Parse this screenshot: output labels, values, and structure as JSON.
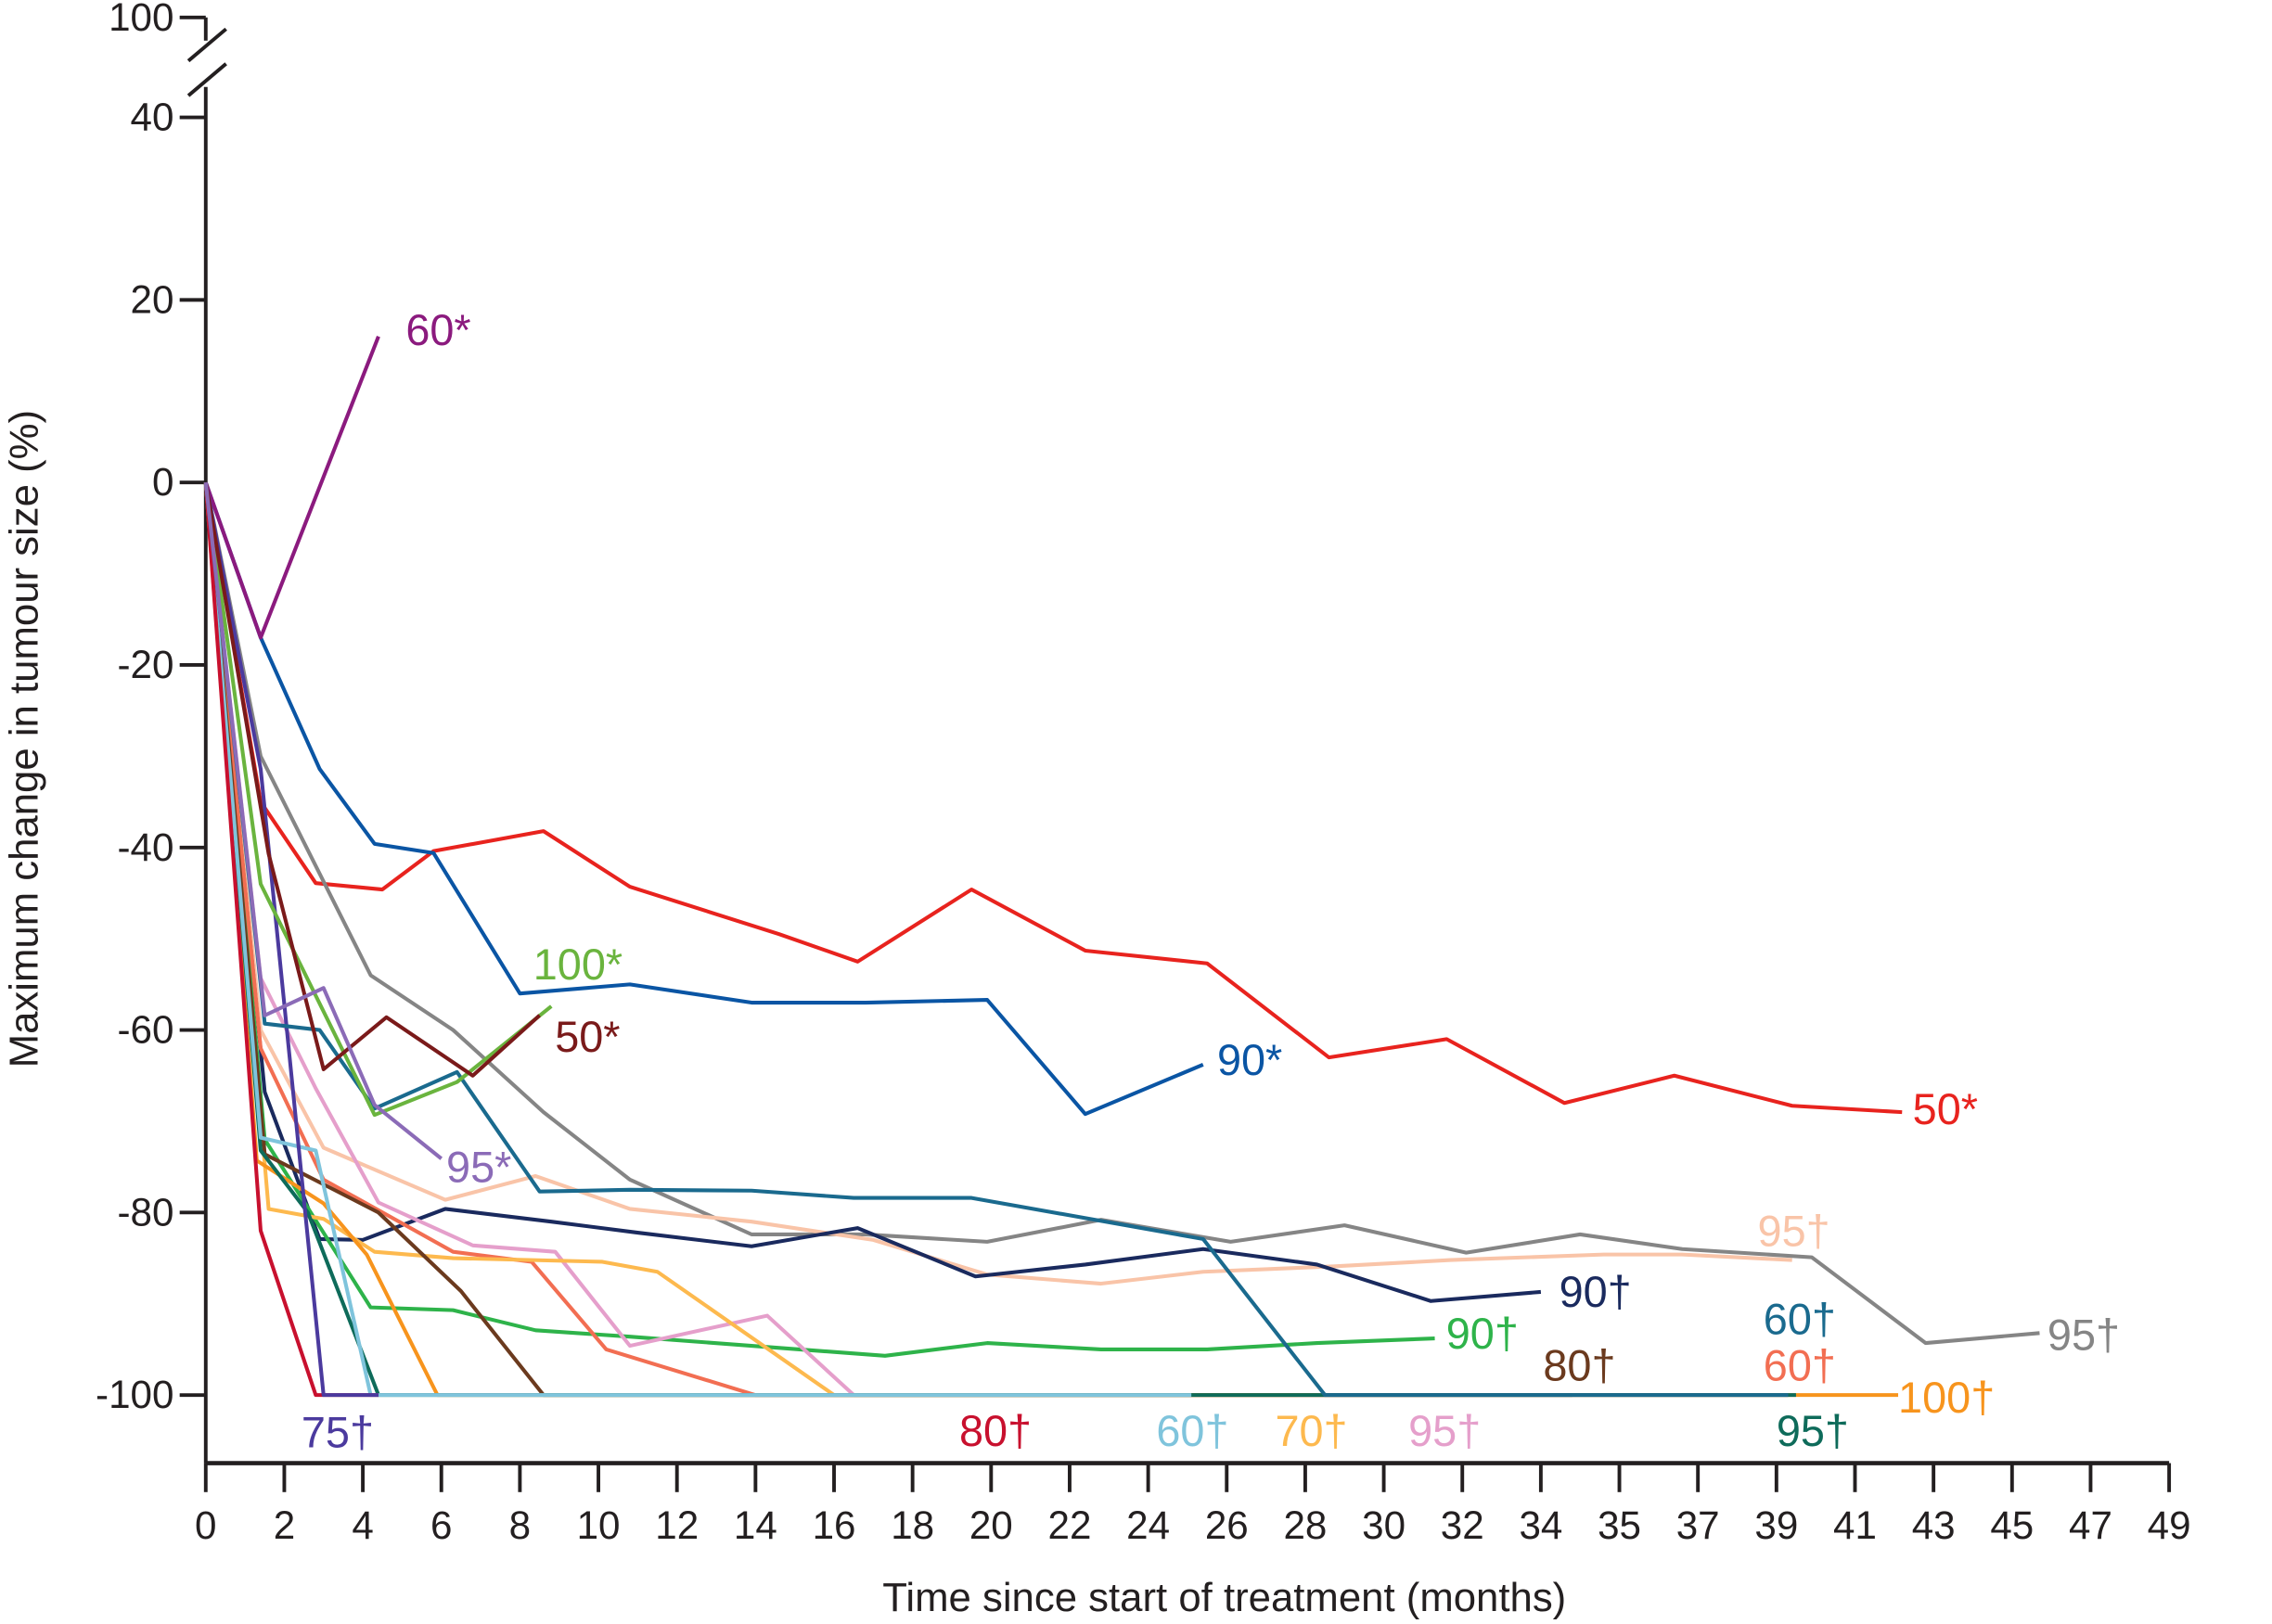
{
  "chart_data": {
    "type": "line",
    "xlabel": "Time since start of treatment (months)",
    "ylabel": "Maximum change in tumour size (%)",
    "x_ticks": [
      0,
      2,
      4,
      6,
      8,
      10,
      12,
      14,
      16,
      18,
      20,
      22,
      24,
      26,
      28,
      30,
      32,
      34,
      35,
      37,
      39,
      41,
      43,
      45,
      47,
      49
    ],
    "y_ticks": [
      100,
      40,
      20,
      0,
      -20,
      -40,
      -60,
      -80,
      -100
    ],
    "y_axis_break": "between 40 and 100",
    "ylim": [
      -100,
      100
    ],
    "grid": false,
    "legend": "none (labels at line ends)",
    "series": [
      {
        "name": "60*",
        "color": "#8b1a7e",
        "points": [
          [
            0,
            0
          ],
          [
            1.4,
            -17
          ],
          [
            4.4,
            16
          ]
        ]
      },
      {
        "name": "90*",
        "color": "#0a55a4",
        "points": [
          [
            0,
            0
          ],
          [
            1.4,
            -17
          ],
          [
            2.9,
            -31.4
          ],
          [
            4.3,
            -39.6
          ],
          [
            5.8,
            -40.6
          ],
          [
            8.0,
            -56
          ],
          [
            10.8,
            -55
          ],
          [
            13.9,
            -57
          ],
          [
            16.8,
            -57
          ],
          [
            19.9,
            -56.7
          ],
          [
            22.4,
            -69.2
          ],
          [
            25.4,
            -63.8
          ]
        ]
      },
      {
        "name": "50*",
        "color": "#e8231e",
        "points": [
          [
            0,
            0
          ],
          [
            1.4,
            -35
          ],
          [
            2.8,
            -43.9
          ],
          [
            4.5,
            -44.6
          ],
          [
            5.8,
            -40.4
          ],
          [
            8.6,
            -38.2
          ],
          [
            10.8,
            -44.3
          ],
          [
            14.6,
            -49.5
          ],
          [
            16.6,
            -52.5
          ],
          [
            19.5,
            -44.6
          ],
          [
            22.4,
            -51.3
          ],
          [
            25.5,
            -52.7
          ],
          [
            28.6,
            -63
          ],
          [
            31.6,
            -61
          ],
          [
            34.3,
            -68
          ],
          [
            36.4,
            -65
          ],
          [
            39.4,
            -68.3
          ],
          [
            42.2,
            -69
          ]
        ]
      },
      {
        "name": "95†",
        "color": "#858585",
        "points": [
          [
            0,
            0
          ],
          [
            1.4,
            -30
          ],
          [
            4.2,
            -54
          ],
          [
            6.3,
            -60
          ],
          [
            8.6,
            -69
          ],
          [
            10.8,
            -76.4
          ],
          [
            13.9,
            -82.4
          ],
          [
            16.8,
            -82.4
          ],
          [
            19.9,
            -83.2
          ],
          [
            22.8,
            -80.8
          ],
          [
            26.1,
            -83.2
          ],
          [
            29,
            -81.4
          ],
          [
            32.1,
            -84.4
          ],
          [
            34.5,
            -82.4
          ],
          [
            36.6,
            -84
          ],
          [
            39.9,
            -84.9
          ],
          [
            42.8,
            -94.3
          ],
          [
            45.7,
            -93.2
          ]
        ]
      },
      {
        "name": "100*",
        "color": "#6ab43e",
        "points": [
          [
            0,
            0
          ],
          [
            1.4,
            -44
          ],
          [
            4.3,
            -69.3
          ],
          [
            6.4,
            -65.7
          ],
          [
            8.8,
            -57.4
          ]
        ]
      },
      {
        "name": "50*",
        "color": "#7a1a1a",
        "points": [
          [
            0,
            0
          ],
          [
            1.6,
            -40.7
          ],
          [
            3.0,
            -64.3
          ],
          [
            4.6,
            -58.6
          ],
          [
            6.8,
            -65
          ],
          [
            8.5,
            -58.4
          ]
        ]
      },
      {
        "name": "95*",
        "color": "#8b6bb7",
        "points": [
          [
            0,
            0
          ],
          [
            1.5,
            -58.4
          ],
          [
            3.0,
            -55.4
          ],
          [
            4.3,
            -68.2
          ],
          [
            6.0,
            -74.1
          ]
        ]
      },
      {
        "name": "60†",
        "color": "#1a6a8e",
        "points": [
          [
            0,
            0
          ],
          [
            1.4,
            -55
          ],
          [
            1.5,
            -59.3
          ],
          [
            2.9,
            -60
          ],
          [
            4.3,
            -68.6
          ],
          [
            6.4,
            -64.6
          ],
          [
            8.5,
            -77.7
          ],
          [
            10.8,
            -77.5
          ],
          [
            13.9,
            -77.6
          ],
          [
            16.5,
            -78.4
          ],
          [
            19.5,
            -78.4
          ],
          [
            25.4,
            -82.9
          ],
          [
            28.5,
            -100
          ],
          [
            39.3,
            -100
          ]
        ]
      },
      {
        "name": "90†",
        "color": "#1a2a5e",
        "points": [
          [
            0,
            0
          ],
          [
            1.5,
            -66.8
          ],
          [
            2.9,
            -82.9
          ],
          [
            4.0,
            -83
          ],
          [
            6.1,
            -79.6
          ],
          [
            8.8,
            -81
          ],
          [
            11,
            -82.2
          ],
          [
            13.9,
            -83.7
          ],
          [
            16.6,
            -81.7
          ],
          [
            19.6,
            -87
          ],
          [
            22.4,
            -85.7
          ],
          [
            25.4,
            -84
          ],
          [
            28.3,
            -85.7
          ],
          [
            31.2,
            -89.7
          ],
          [
            34.0,
            -88.7
          ]
        ]
      },
      {
        "name": "95†",
        "color": "#f9c4a8",
        "points": [
          [
            0,
            0
          ],
          [
            1.4,
            -60
          ],
          [
            3.0,
            -72.9
          ],
          [
            6.1,
            -78.6
          ],
          [
            8.4,
            -76
          ],
          [
            10.8,
            -79.6
          ],
          [
            13.9,
            -81
          ],
          [
            17,
            -83
          ],
          [
            19.9,
            -86.8
          ],
          [
            22.8,
            -87.8
          ],
          [
            25.4,
            -86.5
          ],
          [
            28.7,
            -85.9
          ],
          [
            31.7,
            -85.2
          ],
          [
            34.8,
            -84.6
          ],
          [
            36.6,
            -84.6
          ],
          [
            39.4,
            -85.2
          ]
        ]
      },
      {
        "name": "95†",
        "color": "#e59fcb",
        "points": [
          [
            0,
            0
          ],
          [
            1.4,
            -54.3
          ],
          [
            2.8,
            -66.4
          ],
          [
            4.4,
            -78.9
          ],
          [
            6.8,
            -83.6
          ],
          [
            8.9,
            -84.3
          ],
          [
            10.8,
            -94.6
          ],
          [
            14.3,
            -91.3
          ],
          [
            16.5,
            -100
          ],
          [
            31.4,
            -100
          ]
        ]
      },
      {
        "name": "60†",
        "color": "#f26e52",
        "points": [
          [
            0,
            0
          ],
          [
            1.4,
            -62
          ],
          [
            3.0,
            -76.4
          ],
          [
            6.3,
            -84.3
          ],
          [
            8.3,
            -85.4
          ],
          [
            10.2,
            -95
          ],
          [
            14,
            -100
          ],
          [
            39.3,
            -100
          ]
        ]
      },
      {
        "name": "100†",
        "color": "#f7941d",
        "points": [
          [
            0,
            0
          ],
          [
            1.3,
            -74.3
          ],
          [
            3.0,
            -79
          ],
          [
            4.1,
            -84.6
          ],
          [
            5.9,
            -100
          ],
          [
            39.3,
            -100
          ],
          [
            42.1,
            -100
          ]
        ]
      },
      {
        "name": "70†",
        "color": "#fdb94e",
        "points": [
          [
            0,
            0
          ],
          [
            1.6,
            -79.6
          ],
          [
            3.0,
            -80.7
          ],
          [
            4.3,
            -84.3
          ],
          [
            6.3,
            -85
          ],
          [
            10.1,
            -85.4
          ],
          [
            11.5,
            -86.5
          ],
          [
            16,
            -100
          ],
          [
            27.8,
            -100
          ]
        ]
      },
      {
        "name": "80†",
        "color": "#6b3a1e",
        "points": [
          [
            0,
            0
          ],
          [
            1.5,
            -73.6
          ],
          [
            4.4,
            -80
          ],
          [
            6.5,
            -88.6
          ],
          [
            8.6,
            -100
          ],
          [
            34.4,
            -100
          ]
        ]
      },
      {
        "name": "90†",
        "color": "#2eb34a",
        "points": [
          [
            0,
            0
          ],
          [
            1.5,
            -72
          ],
          [
            4.2,
            -90.4
          ],
          [
            6.3,
            -90.7
          ],
          [
            8.4,
            -92.9
          ],
          [
            10.8,
            -93.6
          ],
          [
            13.9,
            -94.6
          ],
          [
            17.3,
            -95.7
          ],
          [
            19.9,
            -94.3
          ],
          [
            22.8,
            -95
          ],
          [
            25.5,
            -95
          ],
          [
            28.3,
            -94.3
          ],
          [
            31.3,
            -93.8
          ]
        ]
      },
      {
        "name": "95†",
        "color": "#0e6b5a",
        "points": [
          [
            0,
            0
          ],
          [
            1.4,
            -73.2
          ],
          [
            2.6,
            -80
          ],
          [
            4.4,
            -100
          ],
          [
            39.5,
            -100
          ]
        ]
      },
      {
        "name": "60†",
        "color": "#7fc4dc",
        "points": [
          [
            0,
            0
          ],
          [
            1.4,
            -71.8
          ],
          [
            2.8,
            -73.2
          ],
          [
            4.2,
            -100
          ],
          [
            25.1,
            -100
          ]
        ]
      },
      {
        "name": "80†",
        "color": "#c8102e",
        "points": [
          [
            0,
            0
          ],
          [
            1.4,
            -82
          ],
          [
            2.8,
            -100
          ],
          [
            4.4,
            -100
          ]
        ]
      },
      {
        "name": "75†",
        "color": "#4b3a9e",
        "points": [
          [
            0,
            0
          ],
          [
            1.4,
            -31.4
          ],
          [
            3.0,
            -100
          ],
          [
            4.4,
            -100
          ]
        ]
      }
    ]
  }
}
